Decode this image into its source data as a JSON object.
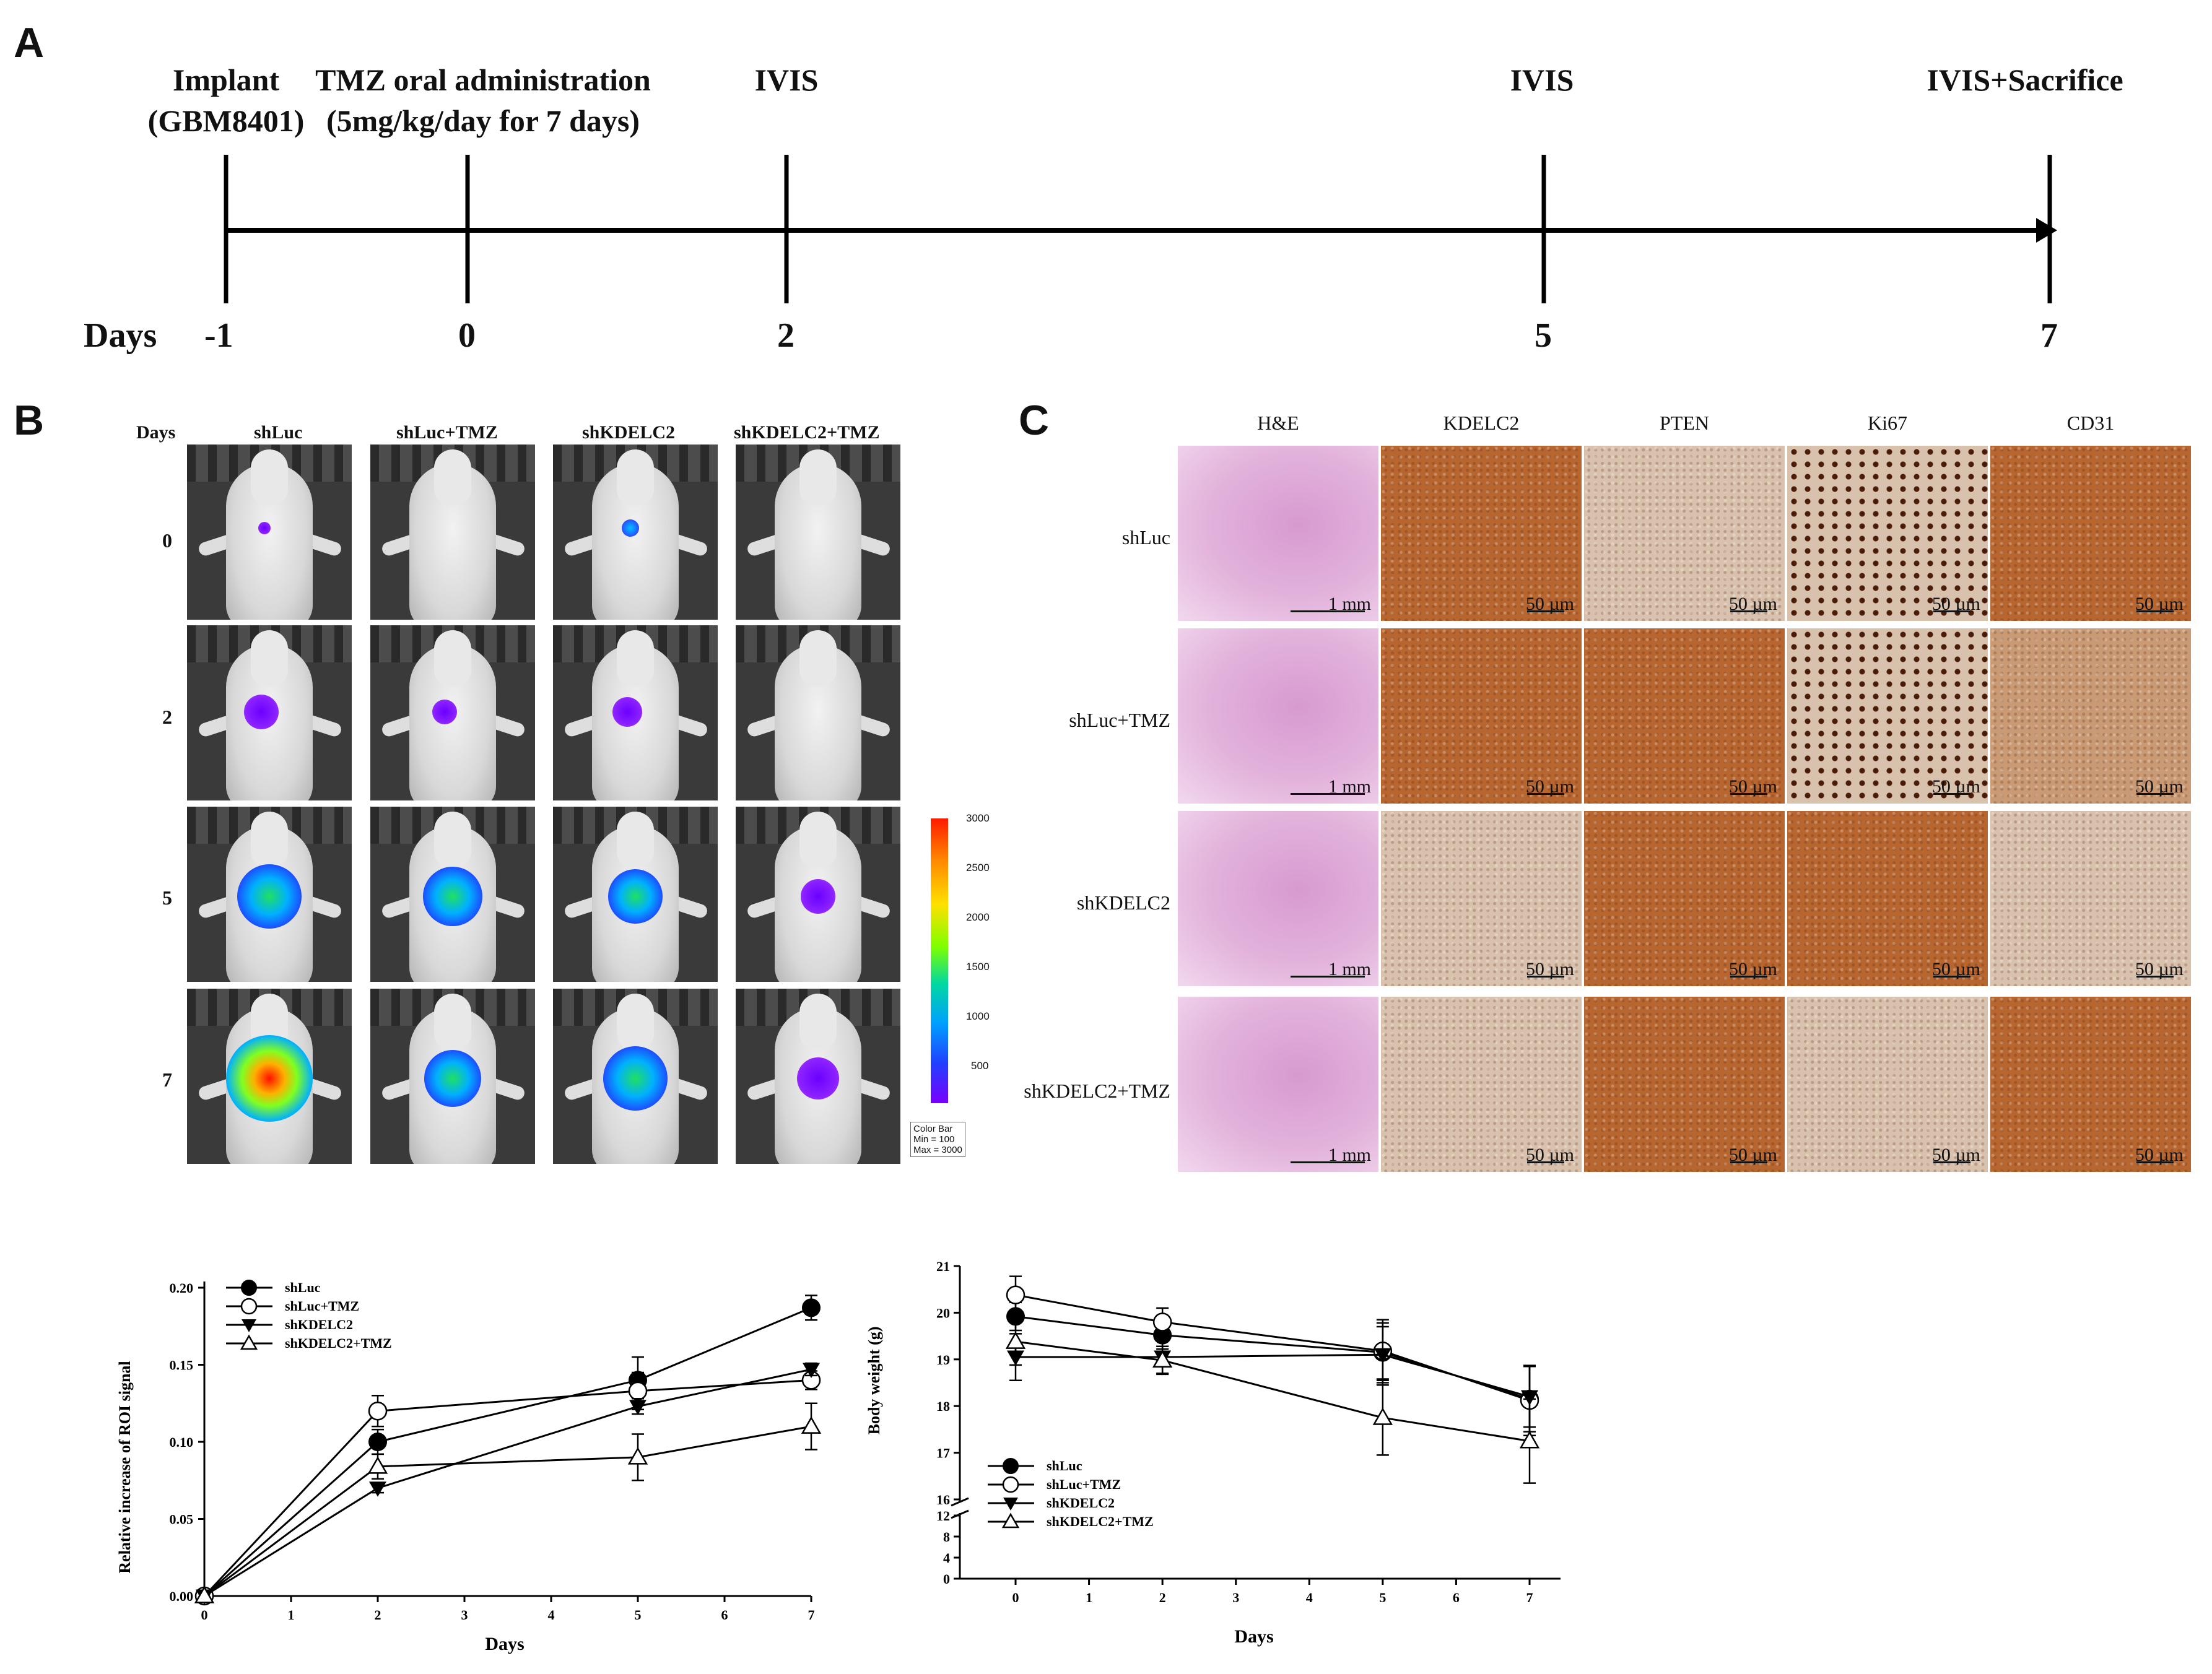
{
  "panels": {
    "a": "A",
    "b": "B",
    "c": "C"
  },
  "timeline": {
    "events": [
      {
        "line1": "Implant",
        "line2": "(GBM8401)"
      },
      {
        "line1": "TMZ oral administration",
        "line2": "(5mg/kg/day for 7 days)"
      },
      {
        "line1": "IVIS",
        "line2": ""
      },
      {
        "line1": "IVIS",
        "line2": ""
      },
      {
        "line1": "IVIS+Sacrifice",
        "line2": ""
      }
    ],
    "days_label": "Days",
    "days": [
      "-1",
      "0",
      "2",
      "5",
      "7"
    ]
  },
  "ivis": {
    "days_header": "Days",
    "columns": [
      "shLuc",
      "shLuc+TMZ",
      "shKDELC2",
      "shKDELC2+TMZ"
    ],
    "rows": [
      "0",
      "2",
      "5",
      "7"
    ],
    "colorbar": {
      "ticks": [
        "3000",
        "2500",
        "2000",
        "1500",
        "1000",
        "500"
      ],
      "info_title": "Color Bar",
      "info_min": "Min = 100",
      "info_max": "Max = 3000"
    }
  },
  "histology": {
    "columns": [
      "H&E",
      "KDELC2",
      "PTEN",
      "Ki67",
      "CD31"
    ],
    "rows": [
      "shLuc",
      "shLuc+TMZ",
      "shKDELC2",
      "shKDELC2+TMZ"
    ],
    "scale_he": "1 mm",
    "scale_ihc": "50 µm",
    "colors": {
      "he": "#d79ad0",
      "ihc_strong": "#b8662f",
      "ihc_weak": "#d9c2ad"
    }
  },
  "chart_data": [
    {
      "type": "line",
      "title": "",
      "xlabel": "Days",
      "ylabel": "Relative increase of ROI signal",
      "x": [
        0,
        2,
        5,
        7
      ],
      "xlim": [
        0,
        7
      ],
      "xticks": [
        "0",
        "1",
        "2",
        "3",
        "4",
        "5",
        "6",
        "7"
      ],
      "ylim": [
        0,
        0.2
      ],
      "yticks": [
        "0.00",
        "0.05",
        "0.10",
        "0.15",
        "0.20"
      ],
      "legend_position": "top-left",
      "series": [
        {
          "name": "shLuc",
          "marker": "filled-circle",
          "values": [
            0,
            0.1,
            0.14,
            0.187
          ],
          "errors": [
            0,
            0.008,
            0.015,
            0.008
          ]
        },
        {
          "name": "shLuc+TMZ",
          "marker": "open-circle",
          "values": [
            0,
            0.12,
            0.133,
            0.14
          ],
          "errors": [
            0,
            0.01,
            0.012,
            0.006
          ]
        },
        {
          "name": "shKDELC2",
          "marker": "filled-triangle-down",
          "values": [
            0,
            0.07,
            0.123,
            0.147
          ],
          "errors": [
            0,
            0.003,
            0.005,
            0.004
          ]
        },
        {
          "name": "shKDELC2+TMZ",
          "marker": "open-triangle-up",
          "values": [
            0,
            0.084,
            0.09,
            0.11
          ],
          "errors": [
            0,
            0.008,
            0.015,
            0.015
          ]
        }
      ]
    },
    {
      "type": "line",
      "title": "",
      "xlabel": "Days",
      "ylabel": "Body weight (g)",
      "x": [
        0,
        2,
        5,
        7
      ],
      "xticks": [
        "0",
        "1",
        "2",
        "3",
        "4",
        "5",
        "6",
        "7"
      ],
      "ylim": [
        0,
        21
      ],
      "axis_break": "between 12 and 16",
      "yticks_upper": [
        "16",
        "17",
        "18",
        "19",
        "20",
        "21"
      ],
      "yticks_lower": [
        "0",
        "4",
        "8",
        "12"
      ],
      "legend_position": "bottom-left",
      "series": [
        {
          "name": "shLuc",
          "marker": "filled-circle",
          "values": [
            19.92,
            19.52,
            19.15,
            18.15
          ],
          "errors": [
            0.3,
            0.3,
            0.7,
            0.7
          ]
        },
        {
          "name": "shLuc+TMZ",
          "marker": "open-circle",
          "values": [
            20.38,
            19.8,
            19.18,
            18.12
          ],
          "errors": [
            0.4,
            0.3,
            0.6,
            0.75
          ]
        },
        {
          "name": "shKDELC2",
          "marker": "filled-triangle-down",
          "values": [
            19.05,
            19.05,
            19.1,
            18.2
          ],
          "errors": [
            0.5,
            0.35,
            0.6,
            0.65
          ]
        },
        {
          "name": "shKDELC2+TMZ",
          "marker": "open-triangle-up",
          "values": [
            19.38,
            18.98,
            17.75,
            17.25
          ],
          "errors": [
            0.5,
            0.3,
            0.8,
            0.9
          ]
        }
      ]
    }
  ]
}
